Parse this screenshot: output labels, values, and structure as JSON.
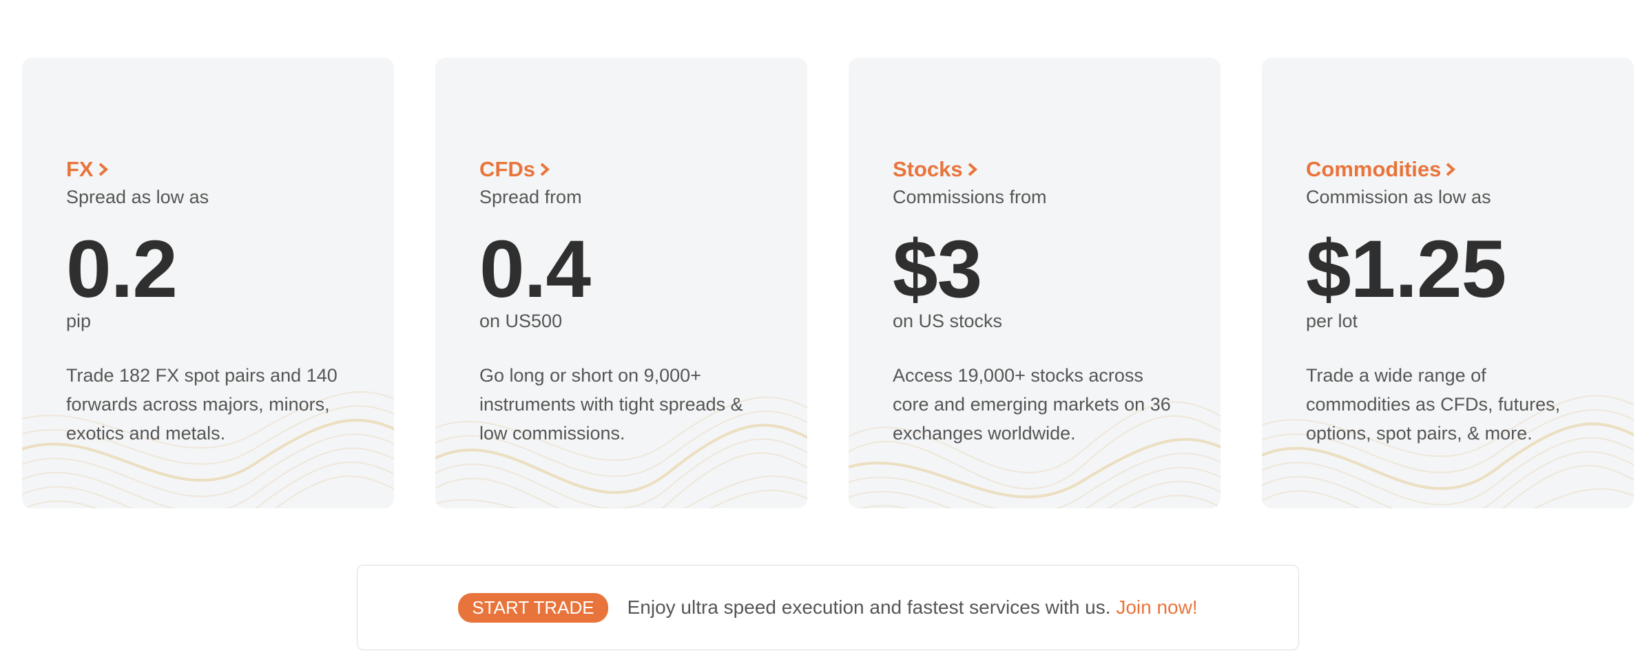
{
  "cards": [
    {
      "title": "FX",
      "subtitle": "Spread as low as",
      "value": "0.2",
      "unit": "pip",
      "description": "Trade 182 FX spot pairs and 140 forwards across majors, minors, exotics and metals."
    },
    {
      "title": "CFDs",
      "subtitle": "Spread from",
      "value": "0.4",
      "unit": "on US500",
      "description": "Go long or short on 9,000+ instruments with tight spreads & low commissions."
    },
    {
      "title": "Stocks",
      "subtitle": "Commissions from",
      "value": "$3",
      "unit": "on US stocks",
      "description": "Access 19,000+ stocks across core and emerging markets on 36 exchanges worldwide."
    },
    {
      "title": "Commodities",
      "subtitle": "Commission as low as",
      "value": "$1.25",
      "unit": "per lot",
      "description": "Trade a wide range of commodities as CFDs, futures, options, spot pairs, & more."
    }
  ],
  "banner": {
    "button": "START TRADE",
    "text": "Enjoy ultra speed execution and fastest services with us.",
    "link": "Join now!"
  }
}
